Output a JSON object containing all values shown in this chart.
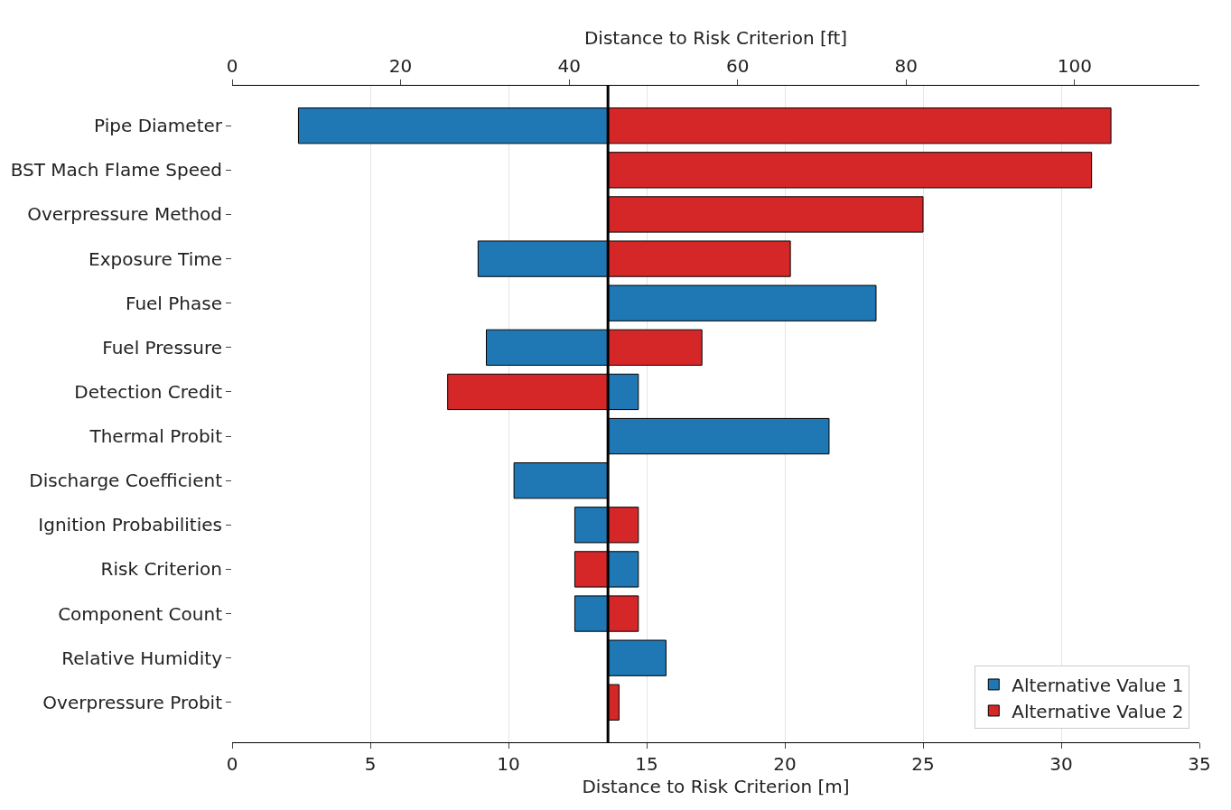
{
  "chart_data": {
    "type": "bar",
    "orientation": "horizontal",
    "xlabel": "Distance to Risk Criterion [m]",
    "x2label": "Distance to Risk Criterion [ft]",
    "categories": [
      "Pipe Diameter",
      "BST Mach Flame Speed",
      "Overpressure Method",
      "Exposure Time",
      "Fuel Phase",
      "Fuel Pressure",
      "Detection Credit",
      "Thermal Probit",
      "Discharge Coefficient",
      "Ignition Probabilities",
      "Risk Criterion",
      "Component Count",
      "Relative Humidity",
      "Overpressure Probit"
    ],
    "series": [
      {
        "name": "Alternative Value 1",
        "color": "#1f77b4",
        "values": [
          11.2,
          null,
          null,
          4.7,
          9.7,
          4.4,
          1.1,
          8.0,
          3.4,
          1.2,
          1.1,
          1.2,
          2.1,
          null
        ],
        "base": [
          2.4,
          null,
          null,
          8.9,
          13.6,
          9.2,
          13.6,
          13.6,
          10.2,
          12.4,
          13.6,
          12.4,
          13.6,
          null
        ]
      },
      {
        "name": "Alternative Value 2",
        "color": "#d62728",
        "values": [
          18.2,
          17.5,
          11.4,
          6.6,
          null,
          3.4,
          5.8,
          null,
          null,
          1.1,
          1.2,
          1.1,
          null,
          0.4
        ],
        "base": [
          13.6,
          13.6,
          13.6,
          13.6,
          null,
          13.6,
          7.8,
          null,
          null,
          13.6,
          12.4,
          13.6,
          null,
          13.6
        ]
      }
    ],
    "xlim": [
      0,
      35
    ],
    "xticks": [
      0,
      5,
      10,
      15,
      20,
      25,
      30,
      35
    ],
    "x2lim": [
      0,
      114.8
    ],
    "x2ticks": [
      0,
      20,
      40,
      60,
      80,
      100
    ],
    "ref_lines": [
      {
        "axis": "x",
        "value": 13.6,
        "color": "#000000"
      }
    ],
    "grid": "x",
    "legend": "bottom right"
  }
}
